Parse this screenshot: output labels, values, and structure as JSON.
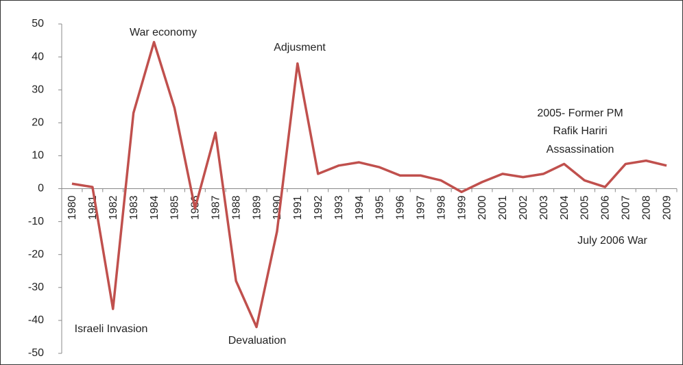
{
  "chart_data": {
    "type": "line",
    "categories": [
      "1980",
      "1981",
      "1982",
      "1983",
      "1984",
      "1985",
      "1986",
      "1987",
      "1988",
      "1989",
      "1990",
      "1991",
      "1992",
      "1993",
      "1994",
      "1995",
      "1996",
      "1997",
      "1998",
      "1999",
      "2000",
      "2001",
      "2002",
      "2003",
      "2004",
      "2005",
      "2006",
      "2007",
      "2008",
      "2009"
    ],
    "values": [
      1.5,
      0.5,
      -36.5,
      23,
      44.5,
      24.5,
      -6,
      17,
      -28,
      -42,
      -13,
      38,
      4.5,
      7,
      8,
      6.5,
      4,
      4,
      2.5,
      -1,
      2,
      4.5,
      3.5,
      4.5,
      7.5,
      2.5,
      0.5,
      7.5,
      8.5,
      7
    ],
    "color": "#c0504d",
    "ylim": [
      -50,
      50
    ],
    "yticks": [
      -50,
      -40,
      -30,
      -20,
      -10,
      0,
      10,
      20,
      30,
      40,
      50
    ],
    "grid": false,
    "annotations": [
      "War economy",
      "Adjusment",
      "2005- Former PM",
      "Rafik Hariri",
      "Assassination",
      "Israeli Invasion",
      "Devaluation",
      "July 2006 War"
    ]
  }
}
